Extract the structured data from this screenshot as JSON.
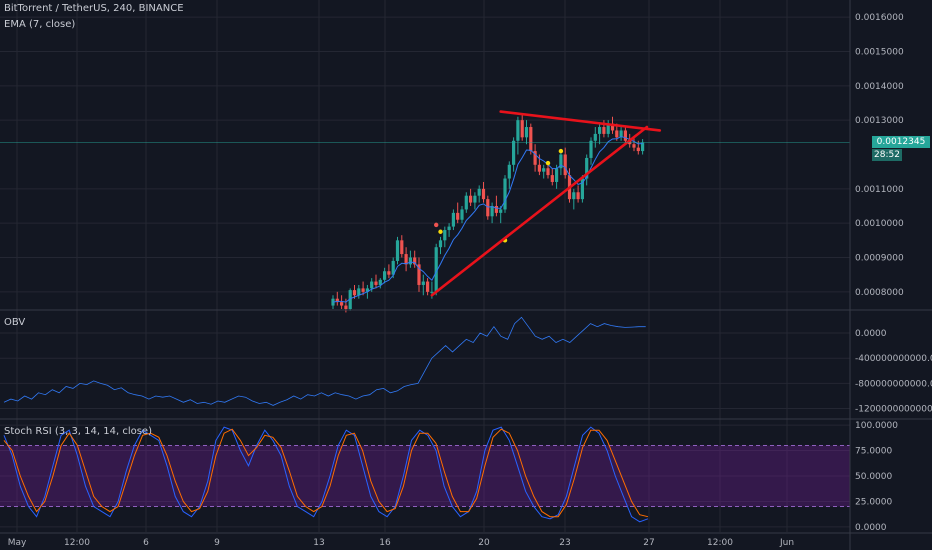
{
  "header": {
    "symbol_line": "BitTorrent / TetherUS, 240, BINANCE",
    "ema_line": "EMA (7, close)",
    "obv_label": "OBV",
    "rsi_label": "Stoch RSI (3, 3, 14, 14, close)"
  },
  "price_axis": [
    "0.0016000",
    "0.0015000",
    "0.0014000",
    "0.0013000",
    "0.0011000",
    "0.0010000",
    "0.0009000",
    "0.0008000"
  ],
  "current_price": {
    "value": "0.0012345",
    "countdown": "28:52",
    "color": "#26a69a"
  },
  "obv_axis": [
    "0.0000",
    "-400000000000.0000",
    "-800000000000.0000",
    "-1200000000000.0000"
  ],
  "rsi_axis": [
    "100.0000",
    "75.0000",
    "50.0000",
    "25.0000",
    "0.0000"
  ],
  "time_axis": [
    "May",
    "12:00",
    "6",
    "9",
    "13",
    "16",
    "20",
    "23",
    "27",
    "12:00",
    "Jun"
  ],
  "colors": {
    "up": "#26a69a",
    "down": "#ef5350",
    "ema": "#3179f5",
    "trend": "#e8121b",
    "obv": "#3179f5",
    "k": "#2962ff",
    "d": "#ff6d00",
    "band": "#7b1fa2"
  },
  "chart_data": [
    {
      "type": "candlestick",
      "price_range": [
        0.00075,
        0.00165
      ],
      "ohlc": [
        [
          0.00076,
          0.00079,
          0.00075,
          0.00078
        ],
        [
          0.00078,
          0.0008,
          0.00076,
          0.00077
        ],
        [
          0.00077,
          0.00079,
          0.00075,
          0.00076
        ],
        [
          0.00076,
          0.00078,
          0.00074,
          0.00075
        ],
        [
          0.00075,
          0.00081,
          0.000745,
          0.000805
        ],
        [
          0.000805,
          0.00082,
          0.00078,
          0.00079
        ],
        [
          0.00079,
          0.00082,
          0.00078,
          0.00081
        ],
        [
          0.00081,
          0.00083,
          0.00079,
          0.0008
        ],
        [
          0.0008,
          0.00082,
          0.00078,
          0.00081
        ],
        [
          0.00081,
          0.00084,
          0.0008,
          0.00083
        ],
        [
          0.00083,
          0.00085,
          0.00081,
          0.00082
        ],
        [
          0.00082,
          0.00084,
          0.00081,
          0.000835
        ],
        [
          0.000835,
          0.00087,
          0.000825,
          0.00086
        ],
        [
          0.00086,
          0.00088,
          0.00084,
          0.00085
        ],
        [
          0.00085,
          0.0009,
          0.00084,
          0.00089
        ],
        [
          0.00089,
          0.00096,
          0.00088,
          0.00095
        ],
        [
          0.00095,
          0.000965,
          0.0009,
          0.00091
        ],
        [
          0.00091,
          0.00093,
          0.00086,
          0.00088
        ],
        [
          0.00088,
          0.00092,
          0.00087,
          0.0009
        ],
        [
          0.0009,
          0.00092,
          0.00087,
          0.00088
        ],
        [
          0.00088,
          0.0009,
          0.0008,
          0.00082
        ],
        [
          0.00082,
          0.00085,
          0.00079,
          0.00083
        ],
        [
          0.00083,
          0.00084,
          0.00079,
          0.0008
        ],
        [
          0.0008,
          0.00083,
          0.00078,
          0.0008
        ],
        [
          0.0008,
          0.00094,
          0.00079,
          0.00093
        ],
        [
          0.00093,
          0.00096,
          0.00091,
          0.00095
        ],
        [
          0.00095,
          0.00099,
          0.00093,
          0.00098
        ],
        [
          0.00098,
          0.001,
          0.00096,
          0.00099
        ],
        [
          0.00099,
          0.00104,
          0.00098,
          0.00103
        ],
        [
          0.00103,
          0.00106,
          0.001,
          0.00101
        ],
        [
          0.00101,
          0.00105,
          0.001,
          0.00104
        ],
        [
          0.00104,
          0.00109,
          0.00103,
          0.00108
        ],
        [
          0.00108,
          0.0011,
          0.00105,
          0.00106
        ],
        [
          0.00106,
          0.00109,
          0.00104,
          0.00108
        ],
        [
          0.00108,
          0.00111,
          0.00106,
          0.0011
        ],
        [
          0.0011,
          0.00112,
          0.00106,
          0.00107
        ],
        [
          0.00107,
          0.00108,
          0.00101,
          0.00102
        ],
        [
          0.00102,
          0.00106,
          0.001,
          0.00105
        ],
        [
          0.00105,
          0.00108,
          0.00102,
          0.00103
        ],
        [
          0.00103,
          0.00105,
          0.001,
          0.00104
        ],
        [
          0.00104,
          0.00114,
          0.00103,
          0.00113
        ],
        [
          0.00113,
          0.00118,
          0.0011,
          0.00117
        ],
        [
          0.00117,
          0.00125,
          0.00115,
          0.00124
        ],
        [
          0.00124,
          0.00131,
          0.0012,
          0.0013
        ],
        [
          0.0013,
          0.00132,
          0.00124,
          0.00125
        ],
        [
          0.00125,
          0.0013,
          0.00123,
          0.00128
        ],
        [
          0.00128,
          0.00129,
          0.0012,
          0.00121
        ],
        [
          0.00121,
          0.00123,
          0.00115,
          0.00117
        ],
        [
          0.00117,
          0.0012,
          0.00114,
          0.00115
        ],
        [
          0.00115,
          0.00117,
          0.00113,
          0.00116
        ],
        [
          0.00116,
          0.00118,
          0.00113,
          0.00114
        ],
        [
          0.00114,
          0.00116,
          0.00111,
          0.00112
        ],
        [
          0.00112,
          0.00117,
          0.0011,
          0.00116
        ],
        [
          0.00116,
          0.00121,
          0.00114,
          0.0012
        ],
        [
          0.0012,
          0.00122,
          0.00113,
          0.00114
        ],
        [
          0.00114,
          0.00116,
          0.00106,
          0.00107
        ],
        [
          0.00107,
          0.0011,
          0.00104,
          0.00109
        ],
        [
          0.00109,
          0.00111,
          0.00106,
          0.00107
        ],
        [
          0.00107,
          0.00114,
          0.00106,
          0.00113
        ],
        [
          0.00113,
          0.0012,
          0.00111,
          0.00119
        ],
        [
          0.00119,
          0.00125,
          0.00117,
          0.00124
        ],
        [
          0.00124,
          0.00128,
          0.00122,
          0.00126
        ],
        [
          0.00126,
          0.00129,
          0.00123,
          0.00128
        ],
        [
          0.00128,
          0.0013,
          0.00125,
          0.00126
        ],
        [
          0.00126,
          0.0013,
          0.00125,
          0.00129
        ],
        [
          0.00129,
          0.00131,
          0.00126,
          0.00127
        ],
        [
          0.00127,
          0.00129,
          0.00124,
          0.00125
        ],
        [
          0.00125,
          0.00128,
          0.00124,
          0.00127
        ],
        [
          0.00127,
          0.00128,
          0.00123,
          0.00124
        ],
        [
          0.00124,
          0.00126,
          0.00122,
          0.00123
        ],
        [
          0.00123,
          0.00125,
          0.00121,
          0.00122
        ],
        [
          0.00122,
          0.00124,
          0.0012,
          0.00121
        ],
        [
          0.00121,
          0.001245,
          0.0012,
          0.001235
        ]
      ],
      "ema": [
        0.00077,
        0.000772,
        0.000772,
        0.00077,
        0.00078,
        0.000785,
        0.00079,
        0.000795,
        0.0008,
        0.000808,
        0.000812,
        0.000818,
        0.000828,
        0.000834,
        0.000848,
        0.000874,
        0.000883,
        0.000882,
        0.000887,
        0.000885,
        0.000868,
        0.000859,
        0.000845,
        0.000834,
        0.000858,
        0.000881,
        0.000906,
        0.000927,
        0.000952,
        0.000966,
        0.000985,
        0.001008,
        0.001021,
        0.001035,
        0.001052,
        0.001056,
        0.001047,
        0.001048,
        0.001044,
        0.001043,
        0.001065,
        0.001091,
        0.001128,
        0.001171,
        0.001191,
        0.001213,
        0.001212,
        0.001201,
        0.001188,
        0.001181,
        0.001171,
        0.001159,
        0.001159,
        0.001169,
        0.001162,
        0.001139,
        0.001127,
        0.001113,
        0.001117,
        0.001135,
        0.001161,
        0.001186,
        0.001208,
        0.00122,
        0.001237,
        0.001245,
        0.001246,
        0.001252,
        0.001249,
        0.001244,
        0.001238,
        0.001231,
        0.001232
      ],
      "dots": [
        {
          "index": 24,
          "price": 0.000995,
          "color": "#ef5350"
        },
        {
          "index": 25,
          "price": 0.000975,
          "color": "#f5d90a"
        },
        {
          "index": 40,
          "price": 0.00095,
          "color": "#f5d90a"
        },
        {
          "index": 50,
          "price": 0.001175,
          "color": "#f5d90a"
        },
        {
          "index": 53,
          "price": 0.00121,
          "color": "#f5d90a"
        }
      ],
      "trendlines": [
        {
          "name": "resistance",
          "from": [
            39,
            0.001325
          ],
          "to": [
            76,
            0.00127
          ]
        },
        {
          "name": "support",
          "from": [
            23,
            0.00079
          ],
          "to": [
            73,
            0.00128
          ]
        }
      ]
    },
    {
      "type": "line",
      "name": "OBV",
      "yrange": [
        -1350000000000,
        350000000000
      ],
      "values": [
        -1100000000000,
        -1050000000000,
        -1080000000000,
        -1000000000000,
        -1050000000000,
        -950000000000,
        -980000000000,
        -900000000000,
        -950000000000,
        -850000000000,
        -880000000000,
        -800000000000,
        -820000000000,
        -760000000000,
        -800000000000,
        -830000000000,
        -900000000000,
        -870000000000,
        -950000000000,
        -980000000000,
        -1000000000000,
        -1050000000000,
        -1000000000000,
        -1020000000000,
        -1000000000000,
        -1050000000000,
        -1100000000000,
        -1060000000000,
        -1120000000000,
        -1100000000000,
        -1130000000000,
        -1080000000000,
        -1100000000000,
        -1050000000000,
        -1000000000000,
        -1020000000000,
        -1080000000000,
        -1120000000000,
        -1100000000000,
        -1150000000000,
        -1100000000000,
        -1060000000000,
        -1000000000000,
        -1050000000000,
        -980000000000,
        -1000000000000,
        -950000000000,
        -1000000000000,
        -950000000000,
        -980000000000,
        -1000000000000,
        -1050000000000,
        -1000000000000,
        -980000000000,
        -900000000000,
        -880000000000,
        -950000000000,
        -920000000000,
        -850000000000,
        -820000000000,
        -800000000000,
        -600000000000,
        -400000000000,
        -300000000000,
        -200000000000,
        -300000000000,
        -200000000000,
        -100000000000,
        -150000000000,
        0,
        -50000000000,
        100000000000,
        -50000000000,
        -100000000000,
        150000000000,
        250000000000,
        100000000000,
        -50000000000,
        -100000000000,
        -50000000000,
        -150000000000,
        -100000000000,
        -150000000000,
        -50000000000,
        50000000000,
        150000000000,
        100000000000,
        150000000000,
        120000000000,
        100000000000,
        90000000000,
        95000000000,
        100000000000,
        100000000000
      ]
    },
    {
      "type": "line",
      "name": "Stoch RSI",
      "yrange": [
        -5,
        105
      ],
      "series": [
        {
          "name": "K",
          "values": [
            90,
            70,
            40,
            20,
            10,
            30,
            60,
            90,
            95,
            70,
            40,
            20,
            15,
            10,
            25,
            55,
            80,
            95,
            90,
            85,
            60,
            30,
            15,
            10,
            20,
            45,
            85,
            98,
            95,
            75,
            60,
            80,
            95,
            85,
            70,
            40,
            20,
            15,
            10,
            25,
            50,
            80,
            95,
            90,
            60,
            30,
            15,
            10,
            20,
            50,
            85,
            95,
            90,
            75,
            40,
            20,
            10,
            15,
            35,
            75,
            95,
            98,
            85,
            60,
            35,
            20,
            10,
            8,
            12,
            30,
            60,
            90,
            98,
            92,
            75,
            50,
            30,
            10,
            5,
            8
          ]
        },
        {
          "name": "D",
          "values": [
            85,
            75,
            50,
            30,
            15,
            25,
            50,
            80,
            92,
            80,
            55,
            30,
            20,
            15,
            20,
            45,
            70,
            90,
            92,
            88,
            70,
            45,
            25,
            15,
            18,
            35,
            70,
            92,
            96,
            85,
            70,
            78,
            90,
            88,
            78,
            55,
            30,
            20,
            15,
            20,
            40,
            70,
            90,
            92,
            75,
            45,
            25,
            15,
            18,
            40,
            75,
            92,
            92,
            82,
            55,
            30,
            15,
            15,
            28,
            60,
            88,
            96,
            92,
            75,
            50,
            30,
            15,
            10,
            10,
            22,
            48,
            78,
            95,
            95,
            85,
            65,
            45,
            25,
            12,
            10
          ]
        }
      ],
      "bands": [
        20,
        80
      ]
    }
  ]
}
